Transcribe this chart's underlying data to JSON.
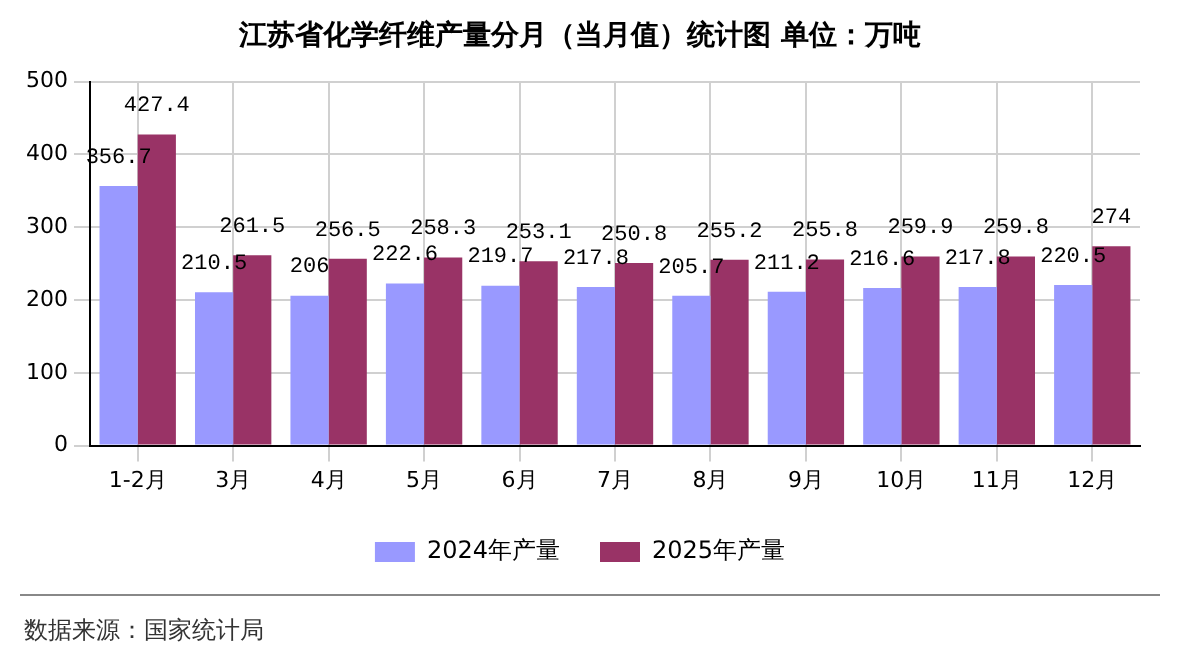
{
  "chart_data": {
    "type": "bar",
    "title": "江苏省化学纤维产量分月（当月值）统计图 单位：万吨",
    "categories": [
      "1-2月",
      "3月",
      "4月",
      "5月",
      "6月",
      "7月",
      "8月",
      "9月",
      "10月",
      "11月",
      "12月"
    ],
    "series": [
      {
        "name": "2024年产量",
        "color": "#9999ff",
        "values": [
          356.7,
          210.5,
          206,
          222.6,
          219.7,
          217.8,
          205.7,
          211.2,
          216.6,
          217.8,
          220.5
        ]
      },
      {
        "name": "2025年产量",
        "color": "#993366",
        "values": [
          427.4,
          261.5,
          256.5,
          258.3,
          253.1,
          250.8,
          255.2,
          255.8,
          259.9,
          259.8,
          274
        ]
      }
    ],
    "ylim": [
      0,
      500
    ],
    "yticks": [
      0,
      100,
      200,
      300,
      400,
      500
    ],
    "grid": true,
    "legend": "bottom",
    "data_labels": true,
    "annotations": [
      "数据来源：国家统计局"
    ]
  }
}
